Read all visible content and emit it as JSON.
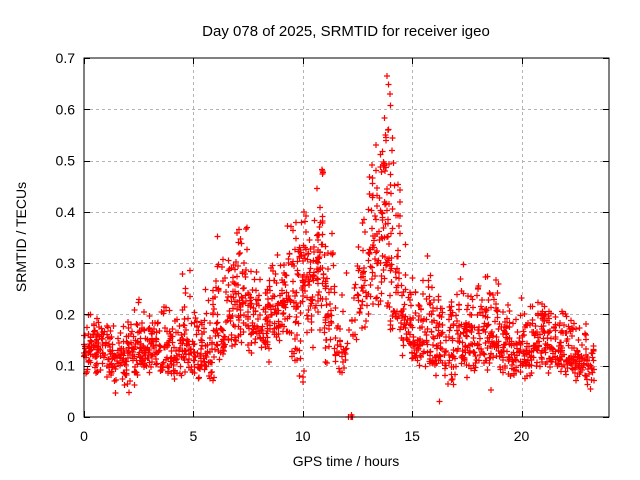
{
  "figure": {
    "background": "#ffffff",
    "border_color": "#000000",
    "grid_color": "#b4b4b4",
    "text_color": "#000000"
  },
  "chart_data": {
    "type": "scatter",
    "title": "Day 078 of 2025, SRMTID for receiver igeo",
    "xlabel": "GPS time / hours",
    "ylabel": "SRMTID / TECUs",
    "xlim": [
      0,
      24
    ],
    "ylim": [
      0,
      0.7
    ],
    "xticks": [
      0,
      5,
      10,
      15,
      20
    ],
    "xtick_labels": [
      "0",
      "5",
      "10",
      "15",
      "20"
    ],
    "yticks": [
      0,
      0.1,
      0.2,
      0.3,
      0.4,
      0.5,
      0.6,
      0.7
    ],
    "ytick_labels": [
      "0",
      "0.1",
      "0.2",
      "0.3",
      "0.4",
      "0.5",
      "0.6",
      "0.7"
    ],
    "grid": true,
    "legend": "none",
    "marker": "plus",
    "marker_color": "#ff0000",
    "seed": 20250318,
    "series": [
      {
        "name": "SRMTID",
        "envelope_segments_format": [
          "t_start_h",
          "t_end_h",
          "n_points",
          "y_min",
          "y_mode",
          "y_max"
        ],
        "envelope_segments": [
          [
            0.0,
            0.5,
            46,
            0.08,
            0.13,
            0.23
          ],
          [
            0.5,
            1.0,
            46,
            0.08,
            0.13,
            0.2
          ],
          [
            1.0,
            1.5,
            44,
            0.05,
            0.12,
            0.19
          ],
          [
            1.5,
            2.0,
            42,
            0.06,
            0.12,
            0.18
          ],
          [
            2.0,
            2.5,
            44,
            0.05,
            0.13,
            0.22
          ],
          [
            2.5,
            3.0,
            46,
            0.08,
            0.14,
            0.25
          ],
          [
            3.0,
            3.5,
            44,
            0.08,
            0.13,
            0.21
          ],
          [
            3.5,
            4.0,
            40,
            0.07,
            0.12,
            0.23
          ],
          [
            4.0,
            4.5,
            40,
            0.07,
            0.12,
            0.2
          ],
          [
            4.5,
            5.0,
            46,
            0.08,
            0.14,
            0.35
          ],
          [
            5.0,
            5.5,
            42,
            0.06,
            0.12,
            0.22
          ],
          [
            5.5,
            6.0,
            42,
            0.06,
            0.13,
            0.26
          ],
          [
            6.0,
            6.5,
            46,
            0.1,
            0.17,
            0.4
          ],
          [
            6.5,
            7.0,
            46,
            0.12,
            0.2,
            0.33
          ],
          [
            7.0,
            7.5,
            50,
            0.14,
            0.24,
            0.42
          ],
          [
            7.5,
            8.0,
            46,
            0.12,
            0.2,
            0.3
          ],
          [
            8.0,
            8.5,
            42,
            0.1,
            0.17,
            0.28
          ],
          [
            8.5,
            9.0,
            46,
            0.14,
            0.21,
            0.33
          ],
          [
            9.0,
            9.5,
            46,
            0.15,
            0.23,
            0.38
          ],
          [
            9.5,
            10.0,
            50,
            0.07,
            0.22,
            0.42
          ],
          [
            10.0,
            10.5,
            54,
            0.12,
            0.27,
            0.45
          ],
          [
            10.5,
            11.0,
            54,
            0.15,
            0.29,
            0.47
          ],
          [
            11.0,
            11.5,
            46,
            0.08,
            0.21,
            0.4
          ],
          [
            11.5,
            12.0,
            30,
            0.06,
            0.13,
            0.25
          ],
          [
            12.0,
            12.5,
            14,
            0.1,
            0.17,
            0.3
          ],
          [
            12.5,
            13.0,
            36,
            0.15,
            0.26,
            0.42
          ],
          [
            13.0,
            13.5,
            50,
            0.15,
            0.31,
            0.55
          ],
          [
            13.5,
            14.0,
            54,
            0.18,
            0.36,
            0.6
          ],
          [
            14.0,
            14.5,
            50,
            0.14,
            0.29,
            0.58
          ],
          [
            14.5,
            15.0,
            44,
            0.1,
            0.19,
            0.35
          ],
          [
            15.0,
            15.5,
            46,
            0.08,
            0.15,
            0.3
          ],
          [
            15.5,
            16.0,
            46,
            0.07,
            0.15,
            0.32
          ],
          [
            16.0,
            16.5,
            44,
            0.06,
            0.14,
            0.25
          ],
          [
            16.5,
            17.0,
            42,
            0.05,
            0.13,
            0.25
          ],
          [
            17.0,
            17.5,
            46,
            0.08,
            0.15,
            0.31
          ],
          [
            17.5,
            18.0,
            42,
            0.07,
            0.14,
            0.25
          ],
          [
            18.0,
            18.5,
            46,
            0.08,
            0.15,
            0.28
          ],
          [
            18.5,
            19.0,
            46,
            0.08,
            0.16,
            0.3
          ],
          [
            19.0,
            19.5,
            44,
            0.07,
            0.13,
            0.22
          ],
          [
            19.5,
            20.0,
            42,
            0.06,
            0.12,
            0.22
          ],
          [
            20.0,
            20.5,
            44,
            0.07,
            0.13,
            0.24
          ],
          [
            20.5,
            21.0,
            46,
            0.08,
            0.14,
            0.25
          ],
          [
            21.0,
            21.5,
            46,
            0.08,
            0.14,
            0.25
          ],
          [
            21.5,
            22.0,
            42,
            0.08,
            0.13,
            0.23
          ],
          [
            22.0,
            22.5,
            42,
            0.07,
            0.12,
            0.21
          ],
          [
            22.5,
            23.0,
            40,
            0.06,
            0.12,
            0.2
          ],
          [
            23.0,
            23.35,
            26,
            0.05,
            0.11,
            0.17
          ]
        ],
        "notable_points": [
          [
            13.85,
            0.665
          ],
          [
            13.92,
            0.648
          ],
          [
            13.98,
            0.63
          ],
          [
            14.0,
            0.607
          ],
          [
            13.74,
            0.583
          ],
          [
            13.9,
            0.56
          ],
          [
            13.8,
            0.545
          ],
          [
            14.08,
            0.52
          ],
          [
            13.55,
            0.512
          ],
          [
            14.15,
            0.495
          ],
          [
            13.68,
            0.497
          ],
          [
            13.71,
            0.494
          ],
          [
            13.73,
            0.49
          ],
          [
            13.7,
            0.487
          ],
          [
            10.88,
            0.483
          ],
          [
            10.91,
            0.48
          ],
          [
            10.93,
            0.477
          ],
          [
            10.9,
            0.474
          ],
          [
            12.08,
            0.0
          ],
          [
            12.2,
            0.0
          ],
          [
            12.24,
            0.0
          ],
          [
            12.27,
            0.0
          ],
          [
            12.22,
            0.004
          ],
          [
            10.0,
            0.068
          ],
          [
            10.02,
            0.078
          ],
          [
            10.05,
            0.09
          ],
          [
            1.45,
            0.047
          ],
          [
            2.05,
            0.048
          ],
          [
            16.25,
            0.03
          ],
          [
            18.6,
            0.053
          ],
          [
            23.15,
            0.055
          ]
        ]
      }
    ]
  }
}
